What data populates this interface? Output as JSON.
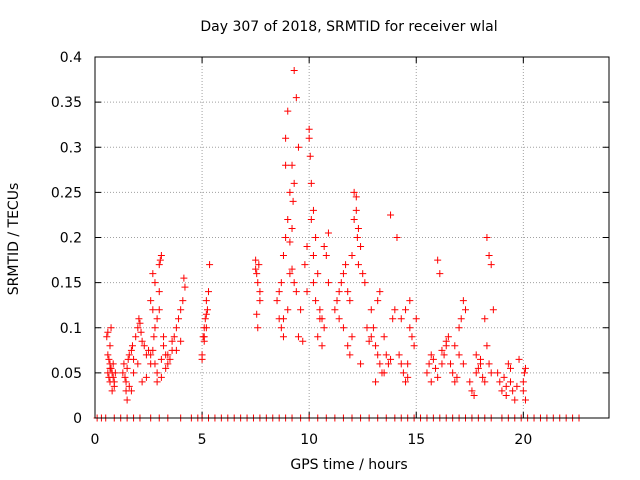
{
  "chart_data": {
    "type": "scatter",
    "title": "Day 307 of 2018, SRMTID for receiver wlal",
    "xlabel": "GPS time / hours",
    "ylabel": "SRMTID / TECUs",
    "xlim": [
      0,
      24
    ],
    "ylim": [
      0,
      0.4
    ],
    "xticks": [
      0,
      5,
      10,
      15,
      20
    ],
    "xtick_labels": [
      "0",
      "5",
      "10",
      "15",
      "20"
    ],
    "yticks": [
      0,
      0.05,
      0.1,
      0.15,
      0.2,
      0.25,
      0.3,
      0.35,
      0.4
    ],
    "ytick_labels": [
      "0",
      "0.05",
      "0.1",
      "0.15",
      "0.2",
      "0.25",
      "0.3",
      "0.35",
      "0.4"
    ],
    "grid": true,
    "marker": "+",
    "series": [
      {
        "name": "SRMTID",
        "color": "#ff0000",
        "x": [
          0.55,
          0.6,
          0.65,
          0.7,
          0.7,
          0.75,
          0.8,
          0.85,
          0.9,
          0.6,
          0.75,
          0.8,
          0.9,
          0.95,
          0.6,
          0.65,
          0.7,
          0.7,
          0.85,
          1.3,
          1.35,
          1.4,
          1.45,
          1.5,
          1.55,
          1.6,
          1.7,
          1.75,
          1.8,
          1.9,
          2.0,
          2.05,
          2.1,
          2.15,
          2.2,
          2.3,
          2.4,
          2.5,
          1.45,
          1.6,
          1.8,
          2.0,
          2.2,
          2.4,
          2.6,
          1.5,
          1.7,
          2.6,
          2.7,
          2.75,
          2.8,
          2.9,
          3.0,
          3.05,
          3.1,
          3.2,
          3.3,
          3.4,
          3.5,
          3.6,
          2.7,
          2.8,
          3.0,
          3.0,
          3.1,
          3.3,
          2.9,
          2.6,
          2.8,
          3.1,
          3.4,
          3.6,
          3.2,
          2.9,
          2.7,
          3.7,
          3.8,
          3.9,
          4.0,
          4.1,
          4.2,
          4.15,
          4.0,
          3.8,
          5.0,
          5.05,
          5.1,
          5.15,
          5.2,
          5.25,
          5.3,
          5.1,
          5.2,
          5.0,
          5.35,
          5.2,
          5.1,
          7.5,
          7.55,
          7.6,
          7.65,
          7.7,
          7.55,
          7.6,
          7.5,
          7.7,
          8.5,
          8.6,
          8.7,
          8.8,
          8.9,
          9.0,
          9.1,
          9.2,
          9.3,
          9.4,
          9.5,
          8.7,
          8.8,
          9.0,
          9.1,
          9.2,
          9.25,
          9.3,
          9.0,
          8.9,
          9.1,
          9.2,
          9.4,
          9.6,
          8.8,
          9.5,
          8.6,
          8.9,
          9.3,
          9.8,
          9.9,
          10.0,
          10.1,
          10.2,
          10.3,
          10.4,
          10.5,
          10.6,
          10.7,
          10.8,
          10.9,
          10.0,
          10.05,
          10.1,
          10.2,
          9.9,
          10.3,
          10.5,
          10.7,
          10.4,
          10.6,
          10.2,
          9.7,
          10.9,
          11.2,
          11.3,
          11.4,
          11.5,
          11.6,
          11.7,
          11.8,
          11.9,
          12.0,
          12.1,
          12.2,
          12.3,
          12.4,
          12.1,
          12.2,
          12.25,
          12.0,
          11.6,
          11.8,
          12.3,
          12.5,
          11.4,
          11.9,
          12.4,
          12.6,
          12.7,
          12.8,
          12.9,
          13.0,
          13.1,
          13.2,
          13.3,
          13.4,
          13.5,
          13.6,
          13.7,
          13.8,
          13.9,
          14.0,
          13.2,
          13.3,
          13.5,
          12.9,
          13.1,
          13.8,
          14.1,
          14.2,
          14.3,
          14.4,
          14.5,
          14.6,
          14.7,
          14.8,
          14.9,
          14.5,
          14.3,
          14.7,
          15.0,
          14.6,
          15.5,
          15.6,
          15.7,
          15.8,
          15.9,
          16.0,
          16.1,
          16.2,
          16.3,
          16.4,
          16.5,
          15.7,
          16.0,
          16.2,
          16.4,
          16.6,
          16.7,
          16.8,
          16.9,
          17.0,
          17.1,
          17.2,
          17.3,
          16.8,
          17.0,
          17.2,
          17.5,
          17.6,
          17.7,
          17.8,
          17.9,
          18.0,
          18.1,
          18.2,
          18.3,
          18.4,
          18.5,
          18.6,
          18.2,
          18.3,
          18.4,
          18.5,
          17.8,
          18.0,
          18.8,
          18.9,
          19.0,
          19.1,
          19.2,
          19.3,
          19.4,
          19.5,
          19.6,
          19.7,
          19.2,
          19.4,
          19.8,
          20.0,
          20.05,
          20.1,
          20.0,
          20.1,
          0.1,
          0.3,
          0.5,
          0.9,
          1.2,
          1.5,
          1.8,
          2.1,
          2.6,
          3.0,
          3.4,
          4.0,
          4.5,
          4.8,
          5.0,
          5.3,
          5.6,
          5.9,
          6.2,
          6.5,
          6.8,
          7.1,
          7.4,
          7.7,
          8.0,
          8.3,
          8.6,
          8.9,
          9.2,
          9.6,
          10.0,
          10.4,
          10.8,
          11.2,
          11.6,
          12.0,
          12.4,
          12.8,
          13.2,
          13.6,
          14.0,
          14.3,
          14.6,
          14.9,
          15.2,
          15.5,
          15.8,
          16.1,
          16.4,
          16.7,
          17.0,
          17.3,
          17.6,
          17.9,
          18.2,
          18.5,
          19.0,
          19.3,
          19.6,
          19.9,
          20.2,
          20.5,
          20.8,
          21.1,
          21.4,
          21.7,
          22.0,
          22.3,
          22.6
        ],
        "y": [
          0.09,
          0.07,
          0.065,
          0.06,
          0.08,
          0.055,
          0.05,
          0.045,
          0.04,
          0.095,
          0.1,
          0.03,
          0.035,
          0.05,
          0.05,
          0.045,
          0.055,
          0.04,
          0.06,
          0.05,
          0.06,
          0.045,
          0.04,
          0.055,
          0.065,
          0.07,
          0.075,
          0.08,
          0.065,
          0.09,
          0.1,
          0.11,
          0.105,
          0.095,
          0.085,
          0.08,
          0.07,
          0.075,
          0.03,
          0.035,
          0.05,
          0.06,
          0.04,
          0.045,
          0.07,
          0.02,
          0.03,
          0.06,
          0.075,
          0.09,
          0.1,
          0.11,
          0.17,
          0.175,
          0.18,
          0.08,
          0.07,
          0.06,
          0.065,
          0.085,
          0.16,
          0.15,
          0.14,
          0.12,
          0.065,
          0.055,
          0.05,
          0.13,
          0.06,
          0.045,
          0.07,
          0.075,
          0.09,
          0.04,
          0.12,
          0.09,
          0.1,
          0.11,
          0.12,
          0.13,
          0.145,
          0.155,
          0.085,
          0.075,
          0.07,
          0.09,
          0.1,
          0.11,
          0.13,
          0.12,
          0.14,
          0.085,
          0.1,
          0.065,
          0.17,
          0.115,
          0.09,
          0.175,
          0.16,
          0.15,
          0.17,
          0.14,
          0.115,
          0.1,
          0.165,
          0.13,
          0.13,
          0.14,
          0.15,
          0.18,
          0.2,
          0.22,
          0.25,
          0.28,
          0.385,
          0.355,
          0.3,
          0.1,
          0.11,
          0.12,
          0.16,
          0.21,
          0.24,
          0.26,
          0.34,
          0.31,
          0.195,
          0.165,
          0.14,
          0.12,
          0.09,
          0.09,
          0.11,
          0.28,
          0.15,
          0.17,
          0.19,
          0.32,
          0.26,
          0.23,
          0.2,
          0.16,
          0.12,
          0.11,
          0.19,
          0.18,
          0.15,
          0.31,
          0.29,
          0.22,
          0.18,
          0.14,
          0.13,
          0.11,
          0.1,
          0.09,
          0.08,
          0.15,
          0.085,
          0.205,
          0.12,
          0.13,
          0.14,
          0.15,
          0.16,
          0.17,
          0.14,
          0.13,
          0.18,
          0.22,
          0.23,
          0.21,
          0.19,
          0.25,
          0.245,
          0.2,
          0.09,
          0.1,
          0.08,
          0.17,
          0.16,
          0.11,
          0.07,
          0.06,
          0.15,
          0.1,
          0.085,
          0.09,
          0.1,
          0.08,
          0.07,
          0.06,
          0.05,
          0.09,
          0.07,
          0.06,
          0.065,
          0.11,
          0.12,
          0.13,
          0.14,
          0.05,
          0.12,
          0.04,
          0.225,
          0.2,
          0.07,
          0.06,
          0.05,
          0.04,
          0.045,
          0.1,
          0.09,
          0.08,
          0.12,
          0.11,
          0.13,
          0.11,
          0.06,
          0.05,
          0.06,
          0.07,
          0.065,
          0.055,
          0.175,
          0.16,
          0.06,
          0.07,
          0.08,
          0.09,
          0.04,
          0.045,
          0.075,
          0.085,
          0.06,
          0.05,
          0.04,
          0.045,
          0.1,
          0.11,
          0.13,
          0.12,
          0.08,
          0.07,
          0.06,
          0.04,
          0.03,
          0.025,
          0.05,
          0.055,
          0.06,
          0.045,
          0.04,
          0.2,
          0.18,
          0.17,
          0.12,
          0.11,
          0.08,
          0.06,
          0.05,
          0.07,
          0.065,
          0.05,
          0.04,
          0.03,
          0.045,
          0.035,
          0.06,
          0.055,
          0.03,
          0.02,
          0.035,
          0.025,
          0.04,
          0.065,
          0.04,
          0.05,
          0.055,
          0.03,
          0.02,
          0,
          0,
          0,
          0,
          0,
          0,
          0,
          0,
          0,
          0,
          0,
          0,
          0,
          0,
          0,
          0,
          0,
          0,
          0,
          0,
          0,
          0,
          0,
          0,
          0,
          0,
          0,
          0,
          0,
          0,
          0,
          0,
          0,
          0,
          0,
          0,
          0,
          0,
          0,
          0,
          0,
          0,
          0,
          0,
          0,
          0,
          0,
          0,
          0,
          0,
          0,
          0,
          0,
          0,
          0,
          0,
          0,
          0,
          0,
          0,
          0,
          0,
          0,
          0,
          0,
          0,
          0,
          0,
          0
        ]
      }
    ]
  }
}
